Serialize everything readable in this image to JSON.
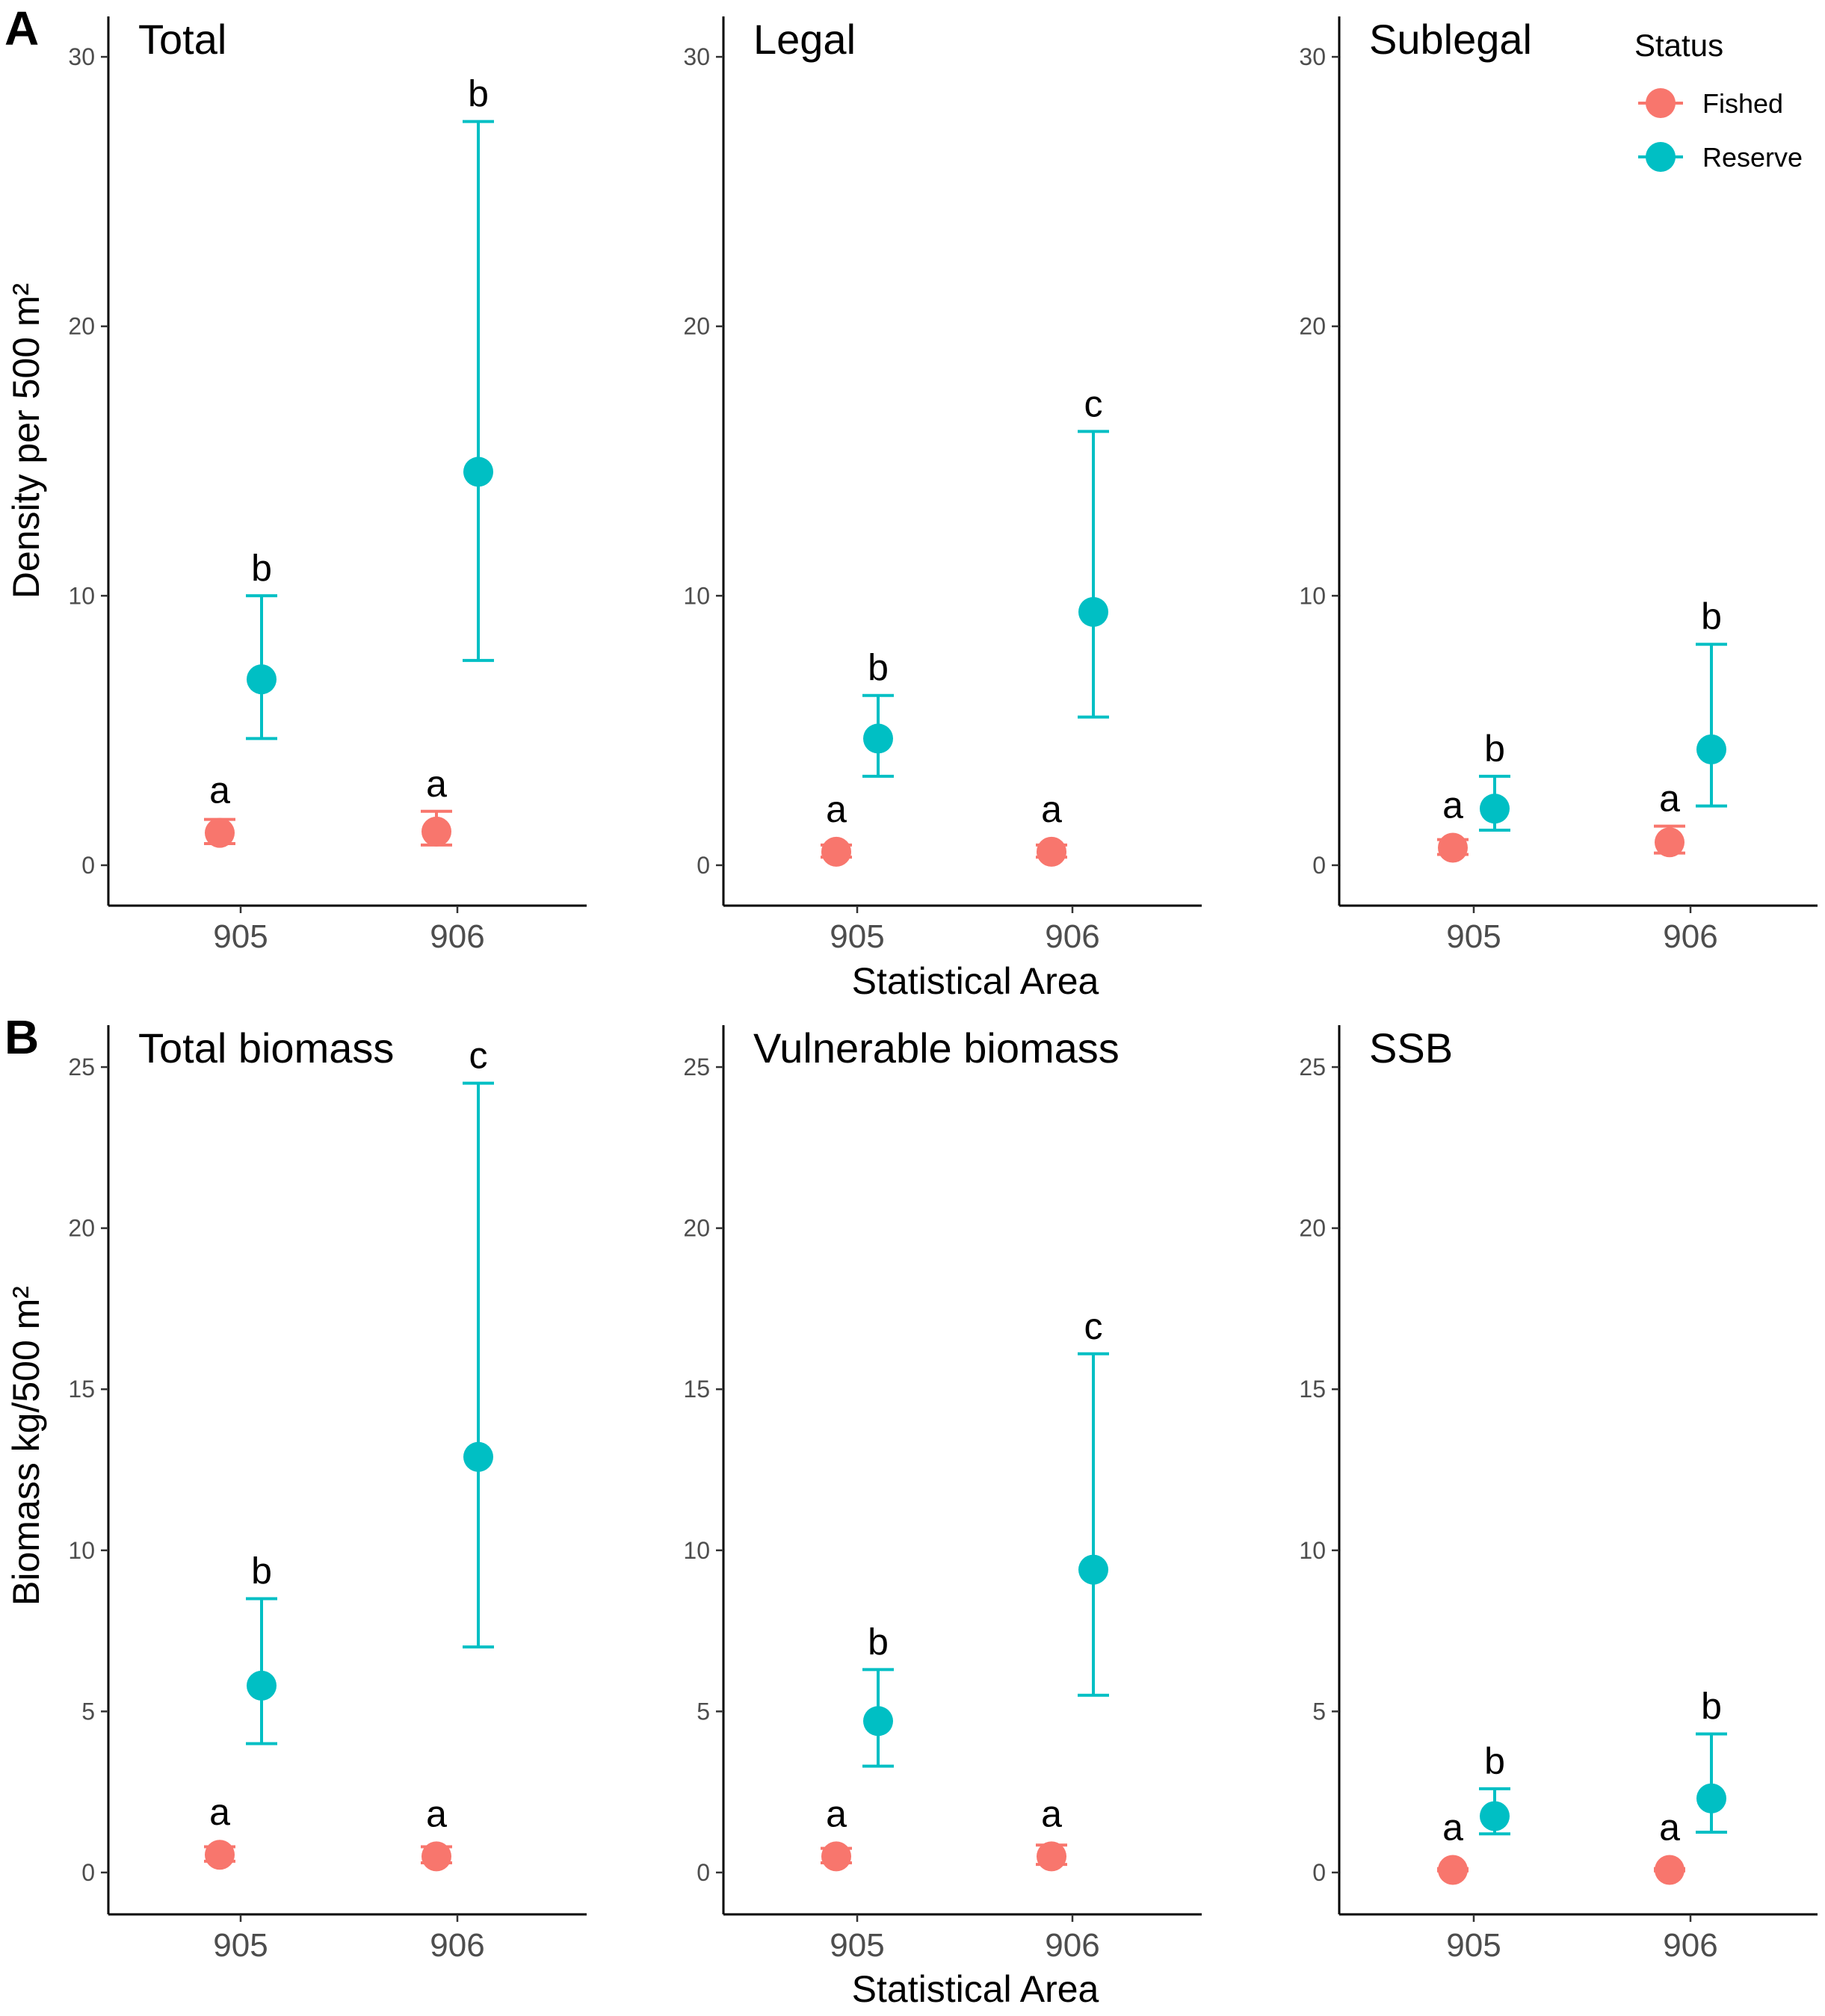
{
  "colors": {
    "Fished": "#F8766D",
    "Reserve": "#00BFC4"
  },
  "legend": {
    "title": "Status",
    "items": [
      "Fished",
      "Reserve"
    ]
  },
  "xlabel": "Statistical Area",
  "chart_data": [
    {
      "type": "scatter",
      "row": "A",
      "row_label": "A",
      "title": "Total",
      "ylabel": "Density per 500 m²",
      "ylim": [
        -1.5,
        31.5
      ],
      "yticks": [
        "0",
        "10",
        "20",
        "30"
      ],
      "categories": [
        "905",
        "906"
      ],
      "series": [
        {
          "name": "Fished",
          "values": [
            1.2,
            1.25
          ],
          "lower": [
            0.8,
            0.75
          ],
          "upper": [
            1.7,
            2.0
          ],
          "letters": [
            "a",
            "a"
          ]
        },
        {
          "name": "Reserve",
          "values": [
            6.9,
            14.6
          ],
          "lower": [
            4.7,
            7.6
          ],
          "upper": [
            10.0,
            27.6
          ],
          "letters": [
            "b",
            "b"
          ]
        }
      ]
    },
    {
      "type": "scatter",
      "row": "A",
      "title": "Legal",
      "ylim": [
        -1.5,
        31.5
      ],
      "yticks": [
        "0",
        "10",
        "20",
        "30"
      ],
      "categories": [
        "905",
        "906"
      ],
      "series": [
        {
          "name": "Fished",
          "values": [
            0.5,
            0.5
          ],
          "lower": [
            0.3,
            0.3
          ],
          "upper": [
            0.75,
            0.75
          ],
          "letters": [
            "a",
            "a"
          ]
        },
        {
          "name": "Reserve",
          "values": [
            4.7,
            9.4
          ],
          "lower": [
            3.3,
            5.5
          ],
          "upper": [
            6.3,
            16.1
          ],
          "letters": [
            "b",
            "c"
          ]
        }
      ]
    },
    {
      "type": "scatter",
      "row": "A",
      "title": "Sublegal",
      "ylim": [
        -1.5,
        31.5
      ],
      "yticks": [
        "0",
        "10",
        "20",
        "30"
      ],
      "categories": [
        "905",
        "906"
      ],
      "series": [
        {
          "name": "Fished",
          "values": [
            0.65,
            0.85
          ],
          "lower": [
            0.4,
            0.45
          ],
          "upper": [
            0.95,
            1.45
          ],
          "letters": [
            "a",
            "a"
          ]
        },
        {
          "name": "Reserve",
          "values": [
            2.1,
            4.3
          ],
          "lower": [
            1.3,
            2.2
          ],
          "upper": [
            3.3,
            8.2
          ],
          "letters": [
            "b",
            "b"
          ]
        }
      ]
    },
    {
      "type": "scatter",
      "row": "B",
      "row_label": "B",
      "title": "Total biomass",
      "ylabel": "Biomass kg/500 m²",
      "ylim": [
        -1.3,
        26.3
      ],
      "yticks": [
        "0",
        "5",
        "10",
        "15",
        "20",
        "25"
      ],
      "categories": [
        "905",
        "906"
      ],
      "series": [
        {
          "name": "Fished",
          "values": [
            0.55,
            0.5
          ],
          "lower": [
            0.35,
            0.3
          ],
          "upper": [
            0.8,
            0.8
          ],
          "letters": [
            "a",
            "a"
          ]
        },
        {
          "name": "Reserve",
          "values": [
            5.8,
            12.9
          ],
          "lower": [
            4.0,
            7.0
          ],
          "upper": [
            8.5,
            24.5
          ],
          "letters": [
            "b",
            "c"
          ]
        }
      ]
    },
    {
      "type": "scatter",
      "row": "B",
      "title": "Vulnerable biomass",
      "ylim": [
        -1.3,
        26.3
      ],
      "yticks": [
        "0",
        "5",
        "10",
        "15",
        "20",
        "25"
      ],
      "categories": [
        "905",
        "906"
      ],
      "series": [
        {
          "name": "Fished",
          "values": [
            0.5,
            0.5
          ],
          "lower": [
            0.3,
            0.25
          ],
          "upper": [
            0.75,
            0.85
          ],
          "letters": [
            "a",
            "a"
          ]
        },
        {
          "name": "Reserve",
          "values": [
            4.7,
            9.4
          ],
          "lower": [
            3.3,
            5.5
          ],
          "upper": [
            6.3,
            16.1
          ],
          "letters": [
            "b",
            "c"
          ]
        }
      ]
    },
    {
      "type": "scatter",
      "row": "B",
      "title": "SSB",
      "ylim": [
        -1.3,
        26.3
      ],
      "yticks": [
        "0",
        "5",
        "10",
        "15",
        "20",
        "25"
      ],
      "categories": [
        "905",
        "906"
      ],
      "series": [
        {
          "name": "Fished",
          "values": [
            0.08,
            0.08
          ],
          "lower": [
            0.05,
            0.05
          ],
          "upper": [
            0.12,
            0.12
          ],
          "letters": [
            "a",
            "a"
          ]
        },
        {
          "name": "Reserve",
          "values": [
            1.75,
            2.3
          ],
          "lower": [
            1.2,
            1.25
          ],
          "upper": [
            2.6,
            4.3
          ],
          "letters": [
            "b",
            "b"
          ]
        }
      ]
    }
  ]
}
